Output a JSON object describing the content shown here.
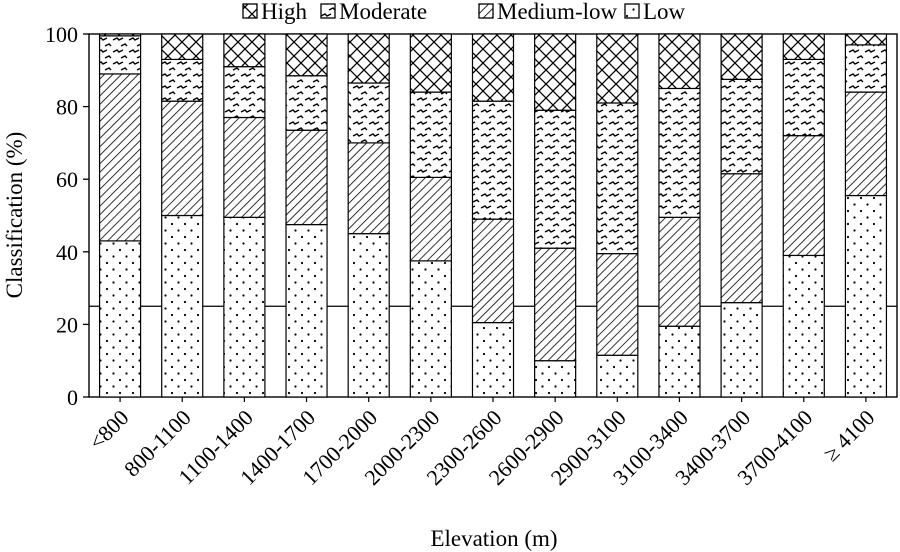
{
  "chart_data": {
    "type": "bar",
    "stacked": true,
    "ylabel": "Classification (%)",
    "xlabel": "Elevation (m)",
    "ylim": [
      0,
      100
    ],
    "yticks": [
      0,
      20,
      40,
      60,
      80,
      100
    ],
    "reference_line": 25,
    "legend_position": "top",
    "categories": [
      "<800",
      "800-1100",
      "1100-1400",
      "1400-1700",
      "1700-2000",
      "2000-2300",
      "2300-2600",
      "2600-2900",
      "2900-3100",
      "3100-3400",
      "3400-3700",
      "3700-4100",
      "≥ 4100"
    ],
    "series": [
      {
        "name": "Low",
        "pattern": "dots",
        "values": [
          43,
          50,
          49.5,
          47.5,
          45,
          37.5,
          20.5,
          10,
          11.5,
          19.5,
          26,
          39,
          55.5
        ]
      },
      {
        "name": "Medium-low",
        "pattern": "diagonal-hatch",
        "values": [
          46,
          31.5,
          27.5,
          26,
          25,
          23,
          28.5,
          31,
          28,
          30,
          35.5,
          33,
          28.5
        ]
      },
      {
        "name": "Moderate",
        "pattern": "wave-dash",
        "values": [
          10.5,
          11.5,
          14,
          15,
          16.5,
          23.5,
          32.5,
          38,
          41.5,
          35.5,
          26,
          21,
          13
        ]
      },
      {
        "name": "High",
        "pattern": "cross-hatch",
        "values": [
          0.5,
          7,
          9,
          11.5,
          13.5,
          16,
          18.5,
          21,
          19,
          15,
          12.5,
          7,
          3
        ]
      }
    ],
    "legend_order": [
      "High",
      "Moderate",
      "Medium-low",
      "Low"
    ],
    "colors": {
      "stroke": "#000000",
      "fill": "#ffffff"
    }
  }
}
